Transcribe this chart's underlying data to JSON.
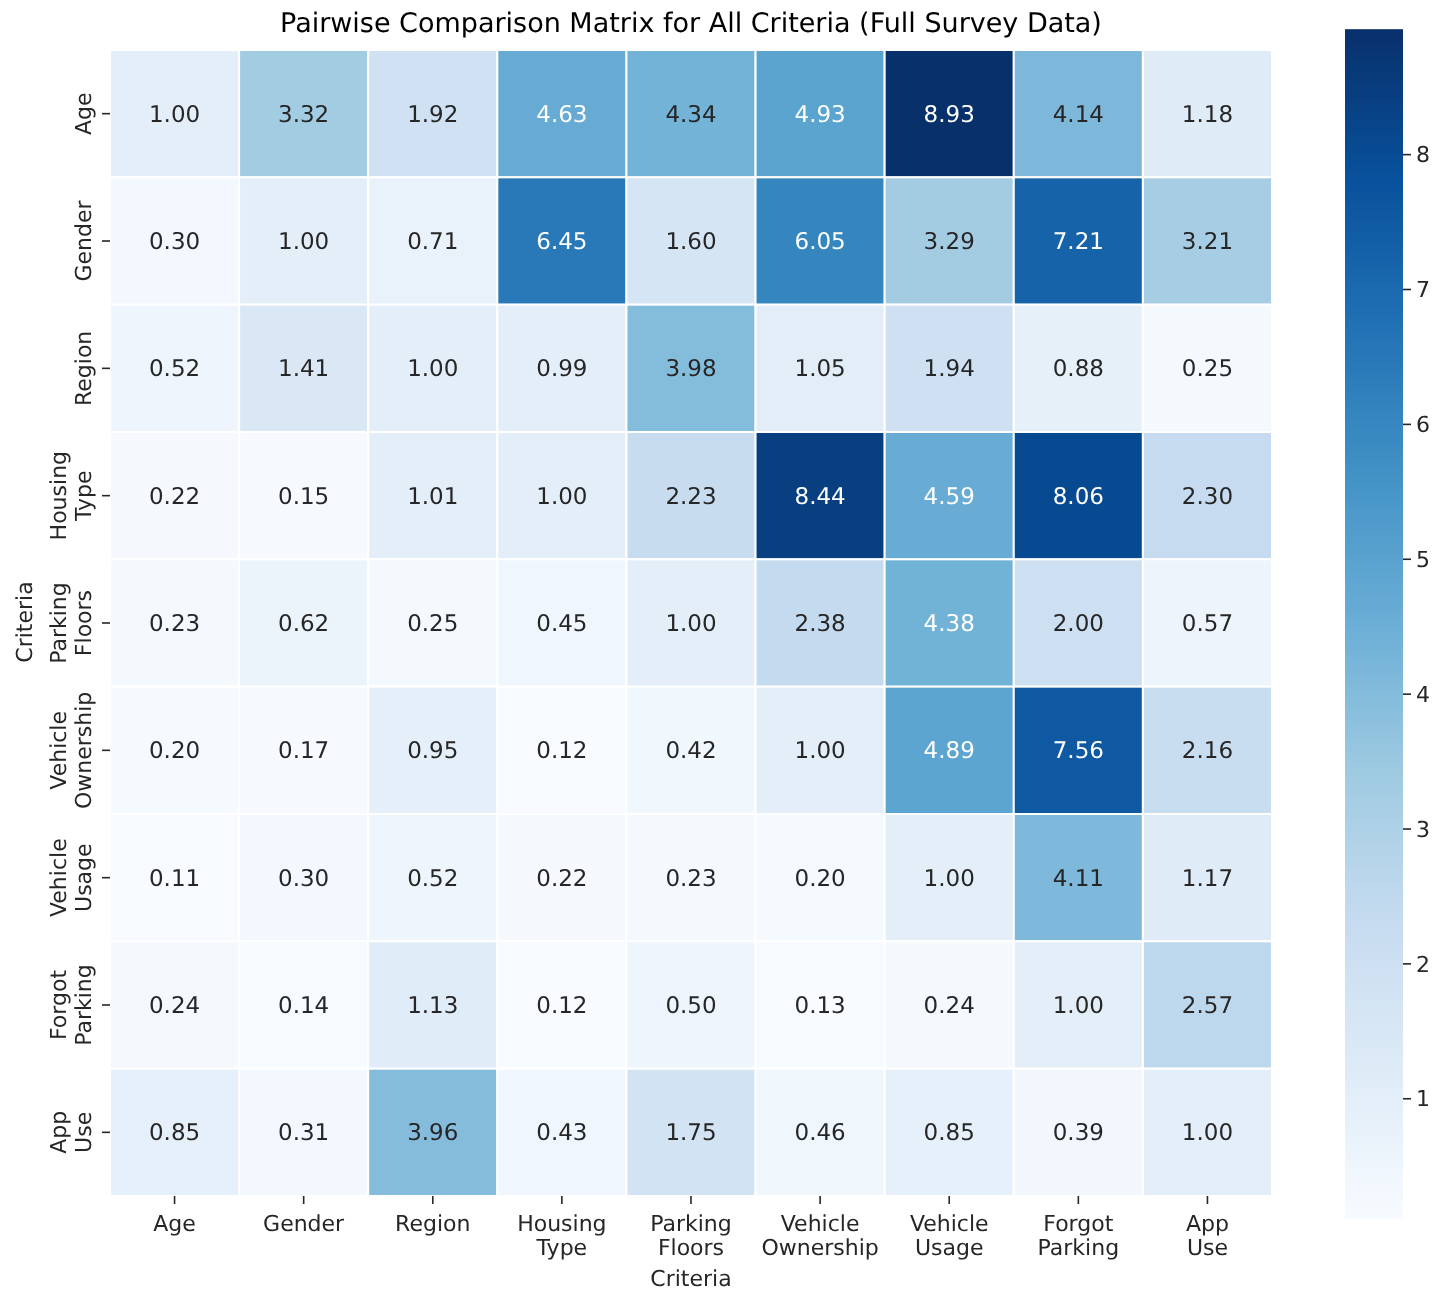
{
  "chart_data": {
    "type": "heatmap",
    "title": "Pairwise Comparison Matrix for All Criteria (Full Survey Data)",
    "xlabel": "Criteria",
    "ylabel": "Criteria",
    "categories": [
      "Age",
      "Gender",
      "Region",
      "Housing Type",
      "Parking Floors",
      "Vehicle Ownership",
      "Vehicle Usage",
      "Forgot Parking",
      "App Use"
    ],
    "y_categories": [
      "Age",
      "Gender",
      "Region",
      "Housing Type",
      "Parking Floors",
      "Vehicle Ownership",
      "Vehicle Usage",
      "Forgot Parking",
      "App Use"
    ],
    "cells": [
      [
        1.0,
        3.32,
        1.92,
        4.63,
        4.34,
        4.93,
        8.93,
        4.14,
        1.18
      ],
      [
        0.3,
        1.0,
        0.71,
        6.45,
        1.6,
        6.05,
        3.29,
        7.21,
        3.21
      ],
      [
        0.52,
        1.41,
        1.0,
        0.99,
        3.98,
        1.05,
        1.94,
        0.88,
        0.25
      ],
      [
        0.22,
        0.15,
        1.01,
        1.0,
        2.23,
        8.44,
        4.59,
        8.06,
        2.3
      ],
      [
        0.23,
        0.62,
        0.25,
        0.45,
        1.0,
        2.38,
        4.38,
        2.0,
        0.57
      ],
      [
        0.2,
        0.17,
        0.95,
        0.12,
        0.42,
        1.0,
        4.89,
        7.56,
        2.16
      ],
      [
        0.11,
        0.3,
        0.52,
        0.22,
        0.23,
        0.2,
        1.0,
        4.11,
        1.17
      ],
      [
        0.24,
        0.14,
        1.13,
        0.12,
        0.5,
        0.13,
        0.24,
        1.0,
        2.57
      ],
      [
        0.85,
        0.31,
        3.96,
        0.43,
        1.75,
        0.46,
        0.85,
        0.39,
        1.0
      ]
    ],
    "cell_labels": [
      [
        "1.00",
        "3.32",
        "1.92",
        "4.63",
        "4.34",
        "4.93",
        "8.93",
        "4.14",
        "1.18"
      ],
      [
        "0.30",
        "1.00",
        "0.71",
        "6.45",
        "1.60",
        "6.05",
        "3.29",
        "7.21",
        "3.21"
      ],
      [
        "0.52",
        "1.41",
        "1.00",
        "0.99",
        "3.98",
        "1.05",
        "1.94",
        "0.88",
        "0.25"
      ],
      [
        "0.22",
        "0.15",
        "1.01",
        "1.00",
        "2.23",
        "8.44",
        "4.59",
        "8.06",
        "2.30"
      ],
      [
        "0.23",
        "0.62",
        "0.25",
        "0.45",
        "1.00",
        "2.38",
        "4.38",
        "2.00",
        "0.57"
      ],
      [
        "0.20",
        "0.17",
        "0.95",
        "0.12",
        "0.42",
        "1.00",
        "4.89",
        "7.56",
        "2.16"
      ],
      [
        "0.11",
        "0.30",
        "0.52",
        "0.22",
        "0.23",
        "0.20",
        "1.00",
        "4.11",
        "1.17"
      ],
      [
        "0.24",
        "0.14",
        "1.13",
        "0.12",
        "0.50",
        "0.13",
        "0.24",
        "1.00",
        "2.57"
      ],
      [
        "0.85",
        "0.31",
        "3.96",
        "0.43",
        "1.75",
        "0.46",
        "0.85",
        "0.39",
        "1.00"
      ]
    ],
    "clim": [
      0.11,
      8.93
    ],
    "cticks": [
      1,
      2,
      3,
      4,
      5,
      6,
      7,
      8
    ],
    "data_labels": true
  }
}
